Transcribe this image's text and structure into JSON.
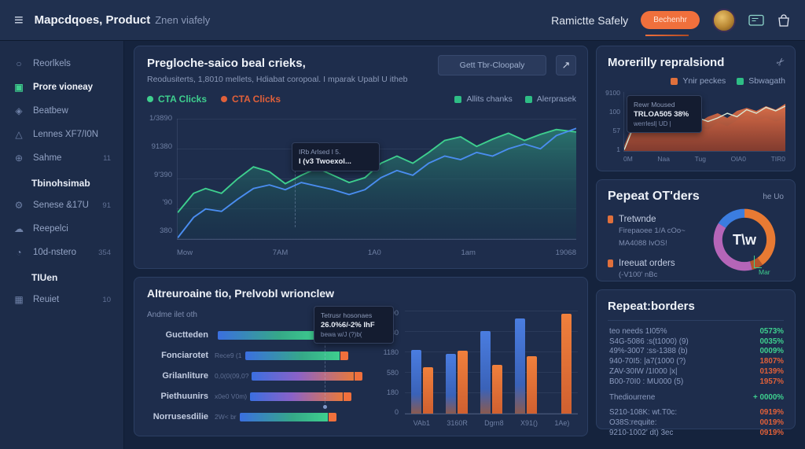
{
  "header": {
    "title_bold": "Mapcdqoes, Product",
    "title_light": "Znen viafely",
    "right_text": "Ramictte Safely",
    "button_label": "Bechenhr"
  },
  "sidebar": {
    "items": [
      {
        "label": "Reorlkels",
        "icon": "user",
        "badge": "",
        "active": false,
        "header": false
      },
      {
        "label": "Prore vioneay",
        "icon": "card",
        "badge": "",
        "active": true,
        "header": false
      },
      {
        "label": "Beatbew",
        "icon": "chart",
        "badge": "",
        "active": false,
        "header": false
      },
      {
        "label": "Lennes XF7/I0N",
        "icon": "pin",
        "badge": "",
        "active": false,
        "header": false
      },
      {
        "label": "Sahme",
        "icon": "globe",
        "badge": "11",
        "active": false,
        "header": false
      },
      {
        "label": "Tbinohsimab",
        "icon": "",
        "badge": "",
        "active": false,
        "header": true
      },
      {
        "label": "Senese &17U",
        "icon": "gear",
        "badge": "91",
        "active": false,
        "header": false
      },
      {
        "label": "Reepelci",
        "icon": "cloud",
        "badge": "",
        "active": false,
        "header": false
      },
      {
        "label": "10d-nstero",
        "icon": "clock",
        "badge": "354",
        "active": false,
        "header": false
      },
      {
        "label": "TIUen",
        "icon": "",
        "badge": "",
        "active": false,
        "header": true
      },
      {
        "label": "Reuiet",
        "icon": "bag",
        "badge": "10",
        "active": false,
        "header": false
      }
    ]
  },
  "main_panel": {
    "title": "Pregloche-saico beal crieks,",
    "subtitle": "Reodusiterts, 1,8010 mellets, Hdiabat coropoal. I mparak Upabl U itheb",
    "dropdown_label": "Gett Tbr-Cloopaly",
    "legend_left": [
      {
        "label": "CTA Clicks",
        "color": "#3ecf8e"
      },
      {
        "label": "CTA Clicks",
        "color": "#e0603a"
      }
    ],
    "legend_right": [
      {
        "label": "Allits chanks",
        "color": "#2ebd85"
      },
      {
        "label": "Alerprasek",
        "color": "#2ebd85"
      }
    ],
    "y_ticks": [
      "1/3890",
      "91380",
      "9'390",
      "'90",
      "380"
    ],
    "x_ticks": [
      "Mow",
      "7AM",
      "1A0",
      "1am",
      "19068"
    ],
    "tooltip": {
      "line1": "IRb Arlsed I 5.",
      "line2": "I (v3 Twoexol..."
    },
    "series": {
      "green": [
        [
          0,
          0.78
        ],
        [
          0.04,
          0.62
        ],
        [
          0.07,
          0.58
        ],
        [
          0.11,
          0.62
        ],
        [
          0.15,
          0.5
        ],
        [
          0.19,
          0.4
        ],
        [
          0.23,
          0.44
        ],
        [
          0.27,
          0.54
        ],
        [
          0.31,
          0.47
        ],
        [
          0.35,
          0.41
        ],
        [
          0.39,
          0.47
        ],
        [
          0.43,
          0.53
        ],
        [
          0.47,
          0.49
        ],
        [
          0.51,
          0.37
        ],
        [
          0.55,
          0.31
        ],
        [
          0.59,
          0.37
        ],
        [
          0.63,
          0.28
        ],
        [
          0.67,
          0.18
        ],
        [
          0.71,
          0.15
        ],
        [
          0.75,
          0.23
        ],
        [
          0.79,
          0.17
        ],
        [
          0.83,
          0.12
        ],
        [
          0.87,
          0.18
        ],
        [
          0.91,
          0.13
        ],
        [
          0.95,
          0.09
        ],
        [
          1,
          0.11
        ]
      ],
      "blue": [
        [
          0,
          0.99
        ],
        [
          0.04,
          0.82
        ],
        [
          0.07,
          0.75
        ],
        [
          0.11,
          0.77
        ],
        [
          0.15,
          0.67
        ],
        [
          0.19,
          0.58
        ],
        [
          0.23,
          0.55
        ],
        [
          0.27,
          0.59
        ],
        [
          0.31,
          0.53
        ],
        [
          0.35,
          0.56
        ],
        [
          0.39,
          0.59
        ],
        [
          0.43,
          0.63
        ],
        [
          0.47,
          0.59
        ],
        [
          0.51,
          0.49
        ],
        [
          0.55,
          0.43
        ],
        [
          0.59,
          0.47
        ],
        [
          0.63,
          0.37
        ],
        [
          0.67,
          0.31
        ],
        [
          0.71,
          0.34
        ],
        [
          0.75,
          0.28
        ],
        [
          0.79,
          0.31
        ],
        [
          0.83,
          0.25
        ],
        [
          0.87,
          0.21
        ],
        [
          0.91,
          0.25
        ],
        [
          0.95,
          0.14
        ],
        [
          1,
          0.08
        ]
      ]
    }
  },
  "attribution_panel": {
    "title": "Altreuroaine tio, Prelvobl wrionclew",
    "subtitle": "Andme ilet oth",
    "tooltip": {
      "line1": "Tetrusr hosonaes",
      "line2": "26.0%6/-2% IhF",
      "line3": "bewa w/J (?)b("
    },
    "bars": [
      {
        "label": "Guctteden",
        "note": "",
        "len": 130,
        "grad": "bg"
      },
      {
        "label": "Fonciarotet",
        "note": "Rece9 (1",
        "len": 120,
        "grad": "bg"
      },
      {
        "label": "Grilanliture",
        "note": "0,0(0(09,0?",
        "len": 130,
        "grad": "bp"
      },
      {
        "label": "Piethuunirs",
        "note": "x0e0 V0m)",
        "len": 118,
        "grad": "bp"
      },
      {
        "label": "Norrusesdilie",
        "note": "2W< br",
        "len": 112,
        "grad": "bg"
      }
    ],
    "vchart": {
      "y_ticks": [
        "9190",
        "4080",
        "1180",
        "580",
        "180",
        "0"
      ],
      "x_ticks": [
        "VAb1",
        "3160R",
        "Dgrn8",
        "X91()",
        "1Ae)"
      ],
      "groups": [
        {
          "blue": 0.62,
          "orange": 0.45
        },
        {
          "blue": 0.58,
          "orange": 0.61
        },
        {
          "blue": 0.8,
          "orange": 0.47
        },
        {
          "blue": 0.92,
          "orange": 0.56
        },
        {
          "blue": 0,
          "orange": 0.97
        }
      ]
    }
  },
  "monthly_panel": {
    "title": "Morerilly repralsiond",
    "legend": [
      {
        "label": "Ynir peckes",
        "color": "#e0703c"
      },
      {
        "label": "Sbwagath",
        "color": "#2ebd85"
      }
    ],
    "tooltip": {
      "line1": "Rewr Moused",
      "line2": "TRLOA505 38%",
      "line3": "werrlesl| UD |"
    },
    "y_ticks": [
      "9100",
      "100",
      "57",
      "1"
    ],
    "x_ticks": [
      "0M",
      "Naa",
      "Tug",
      "OIA0",
      "TIR0"
    ],
    "series": {
      "orange": [
        [
          0,
          0.9
        ],
        [
          0.05,
          0.58
        ],
        [
          0.1,
          0.52
        ],
        [
          0.16,
          0.58
        ],
        [
          0.22,
          0.47
        ],
        [
          0.28,
          0.52
        ],
        [
          0.34,
          0.62
        ],
        [
          0.4,
          0.48
        ],
        [
          0.46,
          0.52
        ],
        [
          0.52,
          0.42
        ],
        [
          0.58,
          0.36
        ],
        [
          0.64,
          0.44
        ],
        [
          0.7,
          0.32
        ],
        [
          0.76,
          0.27
        ],
        [
          0.82,
          0.32
        ],
        [
          0.88,
          0.24
        ],
        [
          0.94,
          0.3
        ],
        [
          1,
          0.2
        ]
      ],
      "maroon": [
        [
          0,
          0.95
        ],
        [
          0.05,
          0.5
        ],
        [
          0.1,
          0.42
        ],
        [
          0.16,
          0.52
        ],
        [
          0.22,
          0.4
        ],
        [
          0.28,
          0.48
        ],
        [
          0.34,
          0.58
        ],
        [
          0.4,
          0.68
        ],
        [
          0.46,
          0.58
        ],
        [
          0.52,
          0.64
        ],
        [
          0.58,
          0.52
        ],
        [
          0.64,
          0.58
        ],
        [
          0.7,
          0.48
        ],
        [
          0.76,
          0.42
        ],
        [
          0.82,
          0.48
        ],
        [
          0.88,
          0.44
        ],
        [
          0.94,
          0.5
        ],
        [
          1,
          0.46
        ]
      ],
      "line": [
        [
          0,
          0.98
        ],
        [
          0.05,
          0.64
        ],
        [
          0.1,
          0.55
        ],
        [
          0.16,
          0.63
        ],
        [
          0.22,
          0.52
        ],
        [
          0.28,
          0.58
        ],
        [
          0.34,
          0.68
        ],
        [
          0.4,
          0.52
        ],
        [
          0.46,
          0.44
        ],
        [
          0.52,
          0.5
        ],
        [
          0.58,
          0.44
        ],
        [
          0.64,
          0.36
        ],
        [
          0.7,
          0.42
        ],
        [
          0.76,
          0.3
        ],
        [
          0.82,
          0.36
        ],
        [
          0.88,
          0.26
        ],
        [
          0.94,
          0.32
        ],
        [
          1,
          0.24
        ]
      ]
    }
  },
  "orders_panel": {
    "title": "Pepeat OT'ders",
    "corner_label": "he Uo",
    "item1_label": "Tretwnde",
    "item1_line1": "Firepaoee 1/A cOo~",
    "item1_line2": "MA4088 IvOS!",
    "item2_label": "Ireeuat orders",
    "item2_line1": "(-V100' nBc",
    "donut": {
      "center": "T\\w",
      "marker": "Mar",
      "segments": [
        {
          "color": "#e87a33",
          "frac": 0.4
        },
        {
          "color": "#b5552a",
          "frac": 0.06
        },
        {
          "color": "#b565b8",
          "frac": 0.38
        },
        {
          "color": "#3b7de0",
          "frac": 0.16
        }
      ]
    }
  },
  "borders_panel": {
    "title": "Repeat:borders",
    "rows": [
      {
        "label": "teo needs 1I05%",
        "value": "0573%",
        "color": "green",
        "spaced": false
      },
      {
        "label": "S4G-5086 :s(t1000) (9)",
        "value": "0035%",
        "color": "green",
        "spaced": false
      },
      {
        "label": "49%-3007 :ss-1388 (b)",
        "value": "0009%",
        "color": "green",
        "spaced": false
      },
      {
        "label": "940-70I5: |a7(1000 (?)",
        "value": "1807%",
        "color": "red",
        "spaced": false
      },
      {
        "label": "ZAV-30IW /1I000 |x|",
        "value": "0139%",
        "color": "red",
        "spaced": false
      },
      {
        "label": "B00-70I0 : MU000 (5)",
        "value": "1957%",
        "color": "red",
        "spaced": false
      },
      {
        "label": "Thediourrene",
        "value": "+ 0000%",
        "color": "green",
        "spaced": true
      },
      {
        "label": "S210-108K: wt.T0c:",
        "value": "0919%",
        "color": "red",
        "spaced": true
      },
      {
        "label": "O38S:requite:",
        "value": "0019%",
        "color": "red",
        "spaced": false
      },
      {
        "label": "9210-1002' dt) 3ec",
        "value": "0919%",
        "color": "red",
        "spaced": false
      }
    ]
  }
}
